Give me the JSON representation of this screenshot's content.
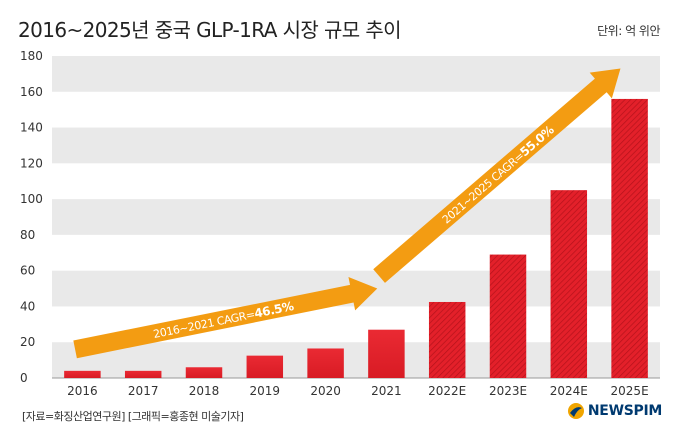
{
  "title": "2016~2025년 중국 GLP-1RA 시장 규모 추이",
  "unit": "단위: 억 위안",
  "source": "[자료=화징산업연구원] [그래픽=홍종현 미술기자]",
  "logo_text": "NEWSPIM",
  "colors": {
    "bar": "#e3202a",
    "bar_dark": "#b5121b",
    "arrow": "#f39c12",
    "band": "#e9e9e9"
  },
  "chart_data": {
    "type": "bar",
    "categories": [
      "2016",
      "2017",
      "2018",
      "2019",
      "2020",
      "2021",
      "2022E",
      "2023E",
      "2024E",
      "2025E"
    ],
    "values": [
      4,
      4,
      6,
      12.5,
      16.5,
      27,
      42.5,
      69,
      105,
      156
    ],
    "estimated": [
      false,
      false,
      false,
      false,
      false,
      false,
      true,
      true,
      true,
      true
    ],
    "ylim": [
      0,
      180
    ],
    "yticks": [
      0,
      20,
      40,
      60,
      80,
      100,
      120,
      140,
      160,
      180
    ],
    "grid": "alternating horizontal bands",
    "annotations": [
      {
        "text": "2016~2021 CAGR=",
        "value": "46.5%",
        "from_category": "2016",
        "to_category": "2021",
        "from_y": 16,
        "to_y": 50
      },
      {
        "text": "2021~2025 CAGR=",
        "value": "55.0%",
        "from_category": "2021",
        "to_category": "2025E",
        "from_y": 57,
        "to_y": 173
      }
    ]
  }
}
